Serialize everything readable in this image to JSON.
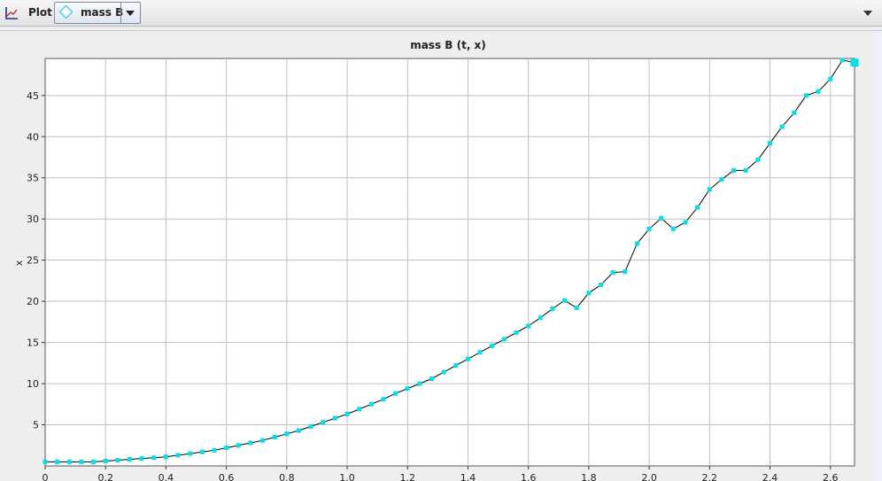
{
  "toolbar": {
    "plot_label": "Plot",
    "series_selected": "mass B",
    "plot_icon": "chart-axes-icon",
    "series_icon": "diamond-icon"
  },
  "colors": {
    "marker": "#00e0e8",
    "line": "#000000",
    "grid": "#c0c0c0",
    "plot_bg": "#ffffff"
  },
  "chart_data": {
    "type": "line",
    "title": "mass B (t, x)",
    "xlabel": "",
    "ylabel": "x",
    "xlim": [
      0,
      2.68
    ],
    "ylim": [
      0,
      49.5
    ],
    "grid": true,
    "x_ticks": [
      0,
      0.2,
      0.4,
      0.6,
      0.8,
      1.0,
      1.2,
      1.4,
      1.6,
      1.8,
      2.0,
      2.2,
      2.4,
      2.6
    ],
    "x_tick_labels": [
      "0",
      "0.2",
      "0.4",
      "0.6",
      "0.8",
      "1.0",
      "1.2",
      "1.4",
      "1.6",
      "1.8",
      "2.0",
      "2.2",
      "2.4",
      "2.6"
    ],
    "y_ticks": [
      5,
      10,
      15,
      20,
      25,
      30,
      35,
      40,
      45
    ],
    "y_tick_labels": [
      "5",
      "10",
      "15",
      "20",
      "25",
      "30",
      "35",
      "40",
      "45"
    ],
    "series": [
      {
        "x": [
          0,
          0.04,
          0.08,
          0.12,
          0.16,
          0.2,
          0.24,
          0.28,
          0.32,
          0.36,
          0.4,
          0.44,
          0.48,
          0.52,
          0.56,
          0.6,
          0.64,
          0.68,
          0.72,
          0.76,
          0.8,
          0.84,
          0.88,
          0.92,
          0.96,
          1.0,
          1.04,
          1.08,
          1.12,
          1.16,
          1.2,
          1.24,
          1.28,
          1.32,
          1.36,
          1.4,
          1.44,
          1.48,
          1.52,
          1.56,
          1.6,
          1.64,
          1.68,
          1.72,
          1.76,
          1.8,
          1.84,
          1.88,
          1.92,
          1.96,
          2.0,
          2.04,
          2.08,
          2.12,
          2.16,
          2.2,
          2.24,
          2.28,
          2.32,
          2.36,
          2.4,
          2.44,
          2.48,
          2.52,
          2.56,
          2.6,
          2.64,
          2.68
        ],
        "y": [
          0.5,
          0.5,
          0.5,
          0.5,
          0.5,
          0.6,
          0.7,
          0.8,
          0.9,
          1.0,
          1.1,
          1.3,
          1.5,
          1.7,
          1.9,
          2.2,
          2.5,
          2.8,
          3.1,
          3.5,
          3.9,
          4.3,
          4.8,
          5.3,
          5.8,
          6.3,
          6.9,
          7.5,
          8.1,
          8.8,
          9.4,
          10.0,
          10.6,
          11.4,
          12.2,
          13.0,
          13.8,
          14.6,
          15.4,
          16.2,
          17.0,
          18.0,
          19.1,
          20.1,
          19.2,
          21.0,
          22.0,
          23.5,
          23.6,
          27.0,
          28.8,
          30.1,
          28.8,
          29.6,
          31.4,
          33.6,
          34.8,
          35.9,
          35.9,
          37.2,
          39.2,
          41.2,
          42.9,
          45.0,
          45.5,
          47.0,
          49.3,
          49.0
        ]
      }
    ]
  }
}
